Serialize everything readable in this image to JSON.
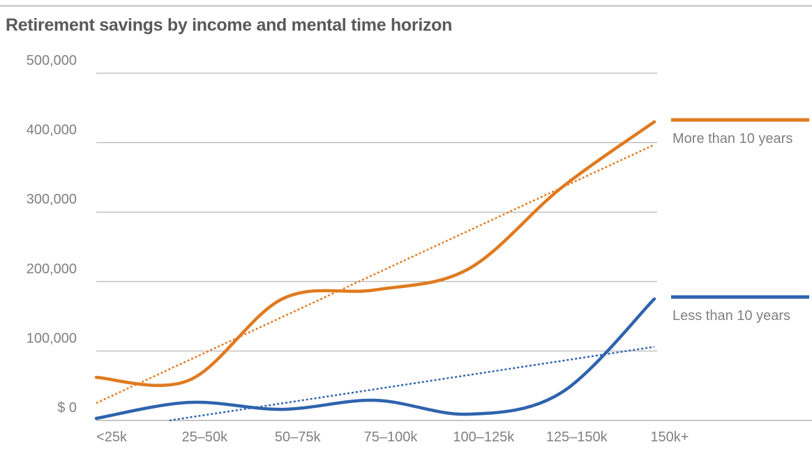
{
  "title": "Retirement savings by income and mental time horizon",
  "chart_data": {
    "type": "line",
    "title": "Retirement savings by income and mental time horizon",
    "categories": [
      "<25k",
      "25–50k",
      "50–75k",
      "75–100k",
      "100–125k",
      "125–150k",
      "150k+"
    ],
    "y_ticks": [
      0,
      100000,
      200000,
      300000,
      400000,
      500000
    ],
    "y_tick_labels": [
      "$ 0",
      "100,000",
      "200,000",
      "300,000",
      "400,000",
      "500,000"
    ],
    "ylim": [
      0,
      500000
    ],
    "grid": true,
    "legend_position": "right",
    "series": [
      {
        "name": "More than 10 years",
        "color": "#e07a1f",
        "values": [
          62000,
          58000,
          175000,
          188000,
          218000,
          335000,
          430000
        ],
        "trend": [
          25000,
          87000,
          149000,
          211000,
          273000,
          335000,
          397000
        ]
      },
      {
        "name": "Less than 10 years",
        "color": "#2e63ad",
        "values": [
          3000,
          26000,
          16000,
          29000,
          9000,
          40000,
          175000
        ],
        "trend": [
          -16000,
          4000,
          25000,
          45000,
          65000,
          86000,
          106000
        ]
      }
    ]
  }
}
